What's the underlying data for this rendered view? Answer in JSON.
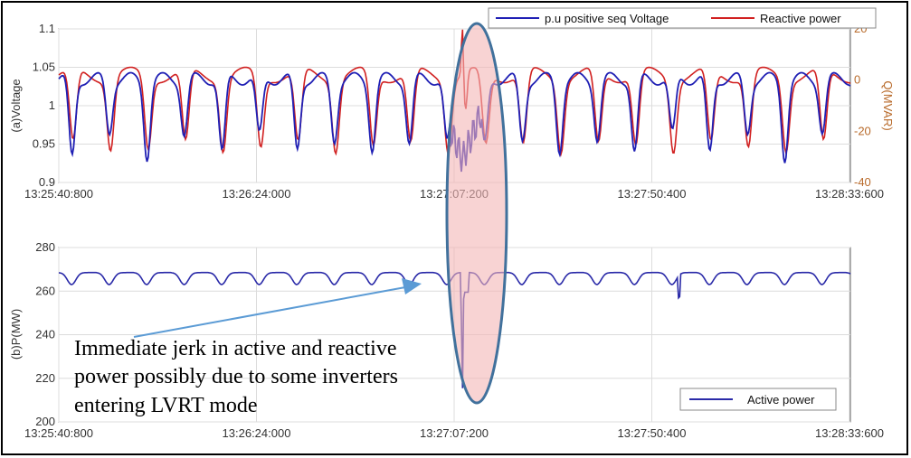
{
  "chart_data": [
    {
      "type": "line",
      "panel": "top",
      "ylabel": "(a)Voltage",
      "ylabel_right": "Q(MVAR)",
      "ylim": [
        0.9,
        1.1
      ],
      "yticks": [
        "0.9",
        "0.95",
        "1",
        "1.05",
        "1.1"
      ],
      "ylim_right": [
        -40,
        20
      ],
      "yticks_right": [
        "-40",
        "-20",
        "0",
        "20"
      ],
      "xlim": [
        0,
        173
      ],
      "xtick_positions": [
        0,
        43.2,
        86.4,
        129.6,
        172.8
      ],
      "xticks": [
        "13:25:40:800",
        "13:26:24:000",
        "13:27:07:200",
        "13:27:50:400",
        "13:28:33:600"
      ],
      "grid": true,
      "legend_position": "top-right",
      "series": [
        {
          "name": "p.u positive seq Voltage",
          "color": "#1f1fb4",
          "axis": "left"
        },
        {
          "name": "Reactive power",
          "color": "#d12020",
          "axis": "right"
        }
      ]
    },
    {
      "type": "line",
      "panel": "bottom",
      "ylabel": "(b)P(MW)",
      "ylim": [
        200,
        280
      ],
      "yticks": [
        "200",
        "220",
        "240",
        "260",
        "280"
      ],
      "xlim": [
        0,
        173
      ],
      "xtick_positions": [
        0,
        43.2,
        86.4,
        129.6,
        172.8
      ],
      "xticks": [
        "13:25:40:800",
        "13:26:24:000",
        "13:27:07:200",
        "13:27:50:400",
        "13:28:33:600"
      ],
      "grid": true,
      "legend_position": "bottom-right",
      "series": [
        {
          "name": "Active power",
          "color": "#2a2aa8",
          "axis": "left"
        }
      ]
    }
  ],
  "annotation": {
    "lines": [
      "Immediate jerk in active and reactive",
      "power possibly due to some inverters",
      "entering LVRT mode"
    ],
    "arrow_color": "#5b9bd5",
    "highlight_color": "#f4b6b6",
    "highlight_border": "#41719c"
  }
}
